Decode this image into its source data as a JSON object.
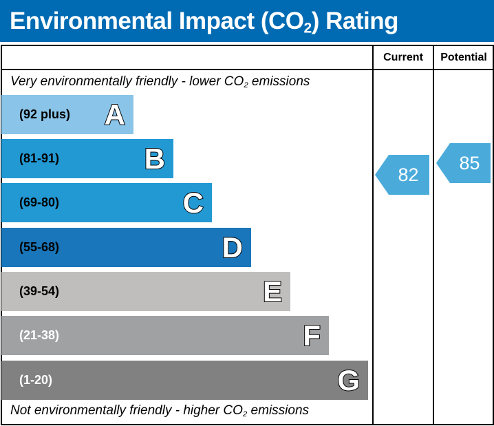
{
  "title": {
    "pre": "Environmental Impact (CO",
    "sub": "2",
    "post": ") Rating"
  },
  "columns": {
    "current": "Current",
    "potential": "Potential"
  },
  "top_note": {
    "pre": "Very environmentally friendly - lower CO",
    "sub": "2",
    "post": " emissions"
  },
  "bottom_note": {
    "pre": "Not environmentally friendly - higher CO",
    "sub": "2",
    "post": " emissions"
  },
  "bands": [
    {
      "letter": "A",
      "range": "(92 plus)",
      "color": "#8ac4e8",
      "text_color": "#000000"
    },
    {
      "letter": "B",
      "range": "(81-91)",
      "color": "#2399d4",
      "text_color": "#000000"
    },
    {
      "letter": "C",
      "range": "(69-80)",
      "color": "#2399d4",
      "text_color": "#000000"
    },
    {
      "letter": "D",
      "range": "(55-68)",
      "color": "#1a76ba",
      "text_color": "#000000"
    },
    {
      "letter": "E",
      "range": "(39-54)",
      "color": "#bfbebc",
      "text_color": "#000000"
    },
    {
      "letter": "F",
      "range": "(21-38)",
      "color": "#a0a1a3",
      "text_color": "#ffffff"
    },
    {
      "letter": "G",
      "range": "(1-20)",
      "color": "#818181",
      "text_color": "#ffffff"
    }
  ],
  "current": {
    "value": "82",
    "band": "B",
    "color": "#4aabdb"
  },
  "potential": {
    "value": "85",
    "band": "B",
    "color": "#4aabdb"
  }
}
